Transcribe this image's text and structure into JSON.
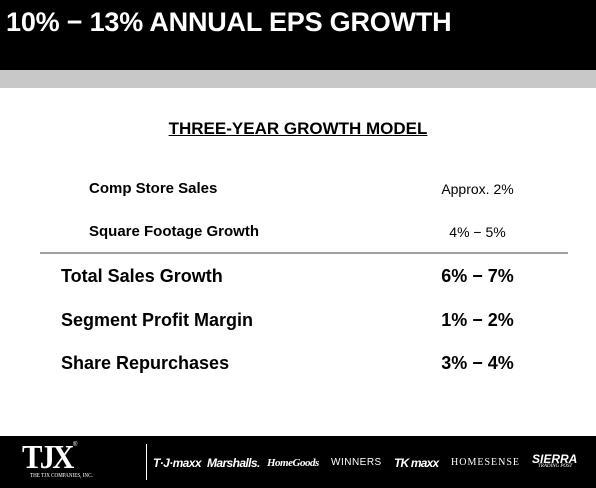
{
  "header": {
    "title": "10% − 13% ANNUAL EPS GROWTH"
  },
  "model": {
    "section_title": "THREE-YEAR GROWTH MODEL",
    "sub_rows": [
      {
        "label": "Comp Store Sales",
        "value": "Approx. 2%"
      },
      {
        "label": "Square Footage Growth",
        "value": "4% − 5%"
      }
    ],
    "main_rows": [
      {
        "label": "Total Sales Growth",
        "value": "6% − 7%"
      },
      {
        "label": "Segment Profit Margin",
        "value": "1% − 2%"
      },
      {
        "label": "Share Repurchases",
        "value": "3% − 4%"
      }
    ]
  },
  "footer": {
    "logo_text": "TJX",
    "logo_tm": "®",
    "logo_subtext": "THE TJX COMPANIES, INC.",
    "brands": [
      "T·J·maxx",
      "Marshalls.",
      "HomeGoods",
      "WINNERS",
      "TK maxx",
      "HOMESENSE",
      "SIERRA"
    ],
    "sierra_sub": "TRADING POST"
  },
  "colors": {
    "header_bg": "#000000",
    "band": "#c8c8c8",
    "divider": "#a0a0a0",
    "footer_bg": "#000000"
  }
}
